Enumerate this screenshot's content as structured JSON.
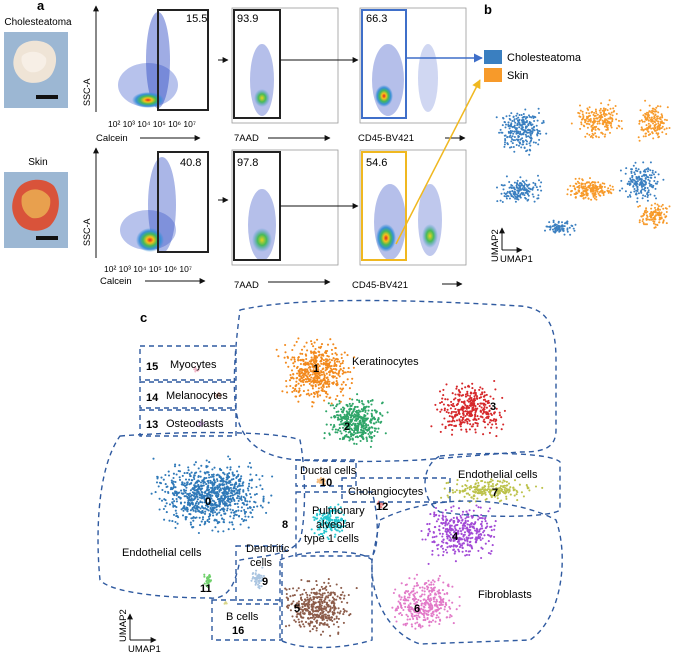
{
  "panels": {
    "a": "a",
    "b": "b",
    "c": "c"
  },
  "samples": [
    {
      "label": "Cholesteatoma",
      "gate1": "15.5",
      "gate2": "93.9",
      "gate3": "66.3",
      "gate3_color": "#3f6fc9"
    },
    {
      "label": "Skin",
      "gate1": "40.8",
      "gate2": "97.8",
      "gate3": "54.6",
      "gate3_color": "#f0b820"
    }
  ],
  "flow_axes": {
    "ylabel": "SSC-A",
    "calcein": "Calcein",
    "calcein_ticks": [
      "10²",
      "10³",
      "10⁴",
      "10⁵",
      "10⁶",
      "10⁷"
    ],
    "aad": "7AAD",
    "cd45": "CD45-BV421"
  },
  "legend_b": [
    {
      "label": "Cholesteatoma",
      "color": "#3a7fc0"
    },
    {
      "label": "Skin",
      "color": "#f79a2a"
    }
  ],
  "umap": {
    "x": "UMAP1",
    "y": "UMAP2"
  },
  "clusters": [
    {
      "id": "0",
      "color": "#2f79b8"
    },
    {
      "id": "1",
      "color": "#f2891c"
    },
    {
      "id": "2",
      "color": "#2ea568"
    },
    {
      "id": "3",
      "color": "#d6282b"
    },
    {
      "id": "4",
      "color": "#a24ad6"
    },
    {
      "id": "5",
      "color": "#8c5c4a"
    },
    {
      "id": "6",
      "color": "#e27ac8"
    },
    {
      "id": "7",
      "color": "#bcc24a"
    },
    {
      "id": "8",
      "color": "#27c6cf"
    },
    {
      "id": "9",
      "color": "#a9c4e0"
    },
    {
      "id": "10",
      "color": "#f7bc7c"
    },
    {
      "id": "11",
      "color": "#6fd06b"
    },
    {
      "id": "12",
      "color": "#f08a8a"
    },
    {
      "id": "13",
      "color": "#c5a8d6"
    },
    {
      "id": "14",
      "color": "#c09a8e"
    },
    {
      "id": "15",
      "color": "#f3b8c9"
    },
    {
      "id": "16",
      "color": "#d9d68a"
    }
  ],
  "cell_types": {
    "keratinocytes": "Keratinocytes",
    "myocytes": "Myocytes",
    "melanocytes": "Melanocytes",
    "osteoclasts": "Osteoclasts",
    "ductal": "Ductal cells",
    "cholangiocytes": "Cholangiocytes",
    "endothelial_right": "Endothelial cells",
    "endothelial_left": "Endothelial cells",
    "pulmonary": [
      "Pulmonary",
      "alveolar",
      "type 1 cells"
    ],
    "dendritic": [
      "Dendritic",
      "cells"
    ],
    "bcells": "B cells",
    "fibroblasts": "Fibroblasts"
  }
}
